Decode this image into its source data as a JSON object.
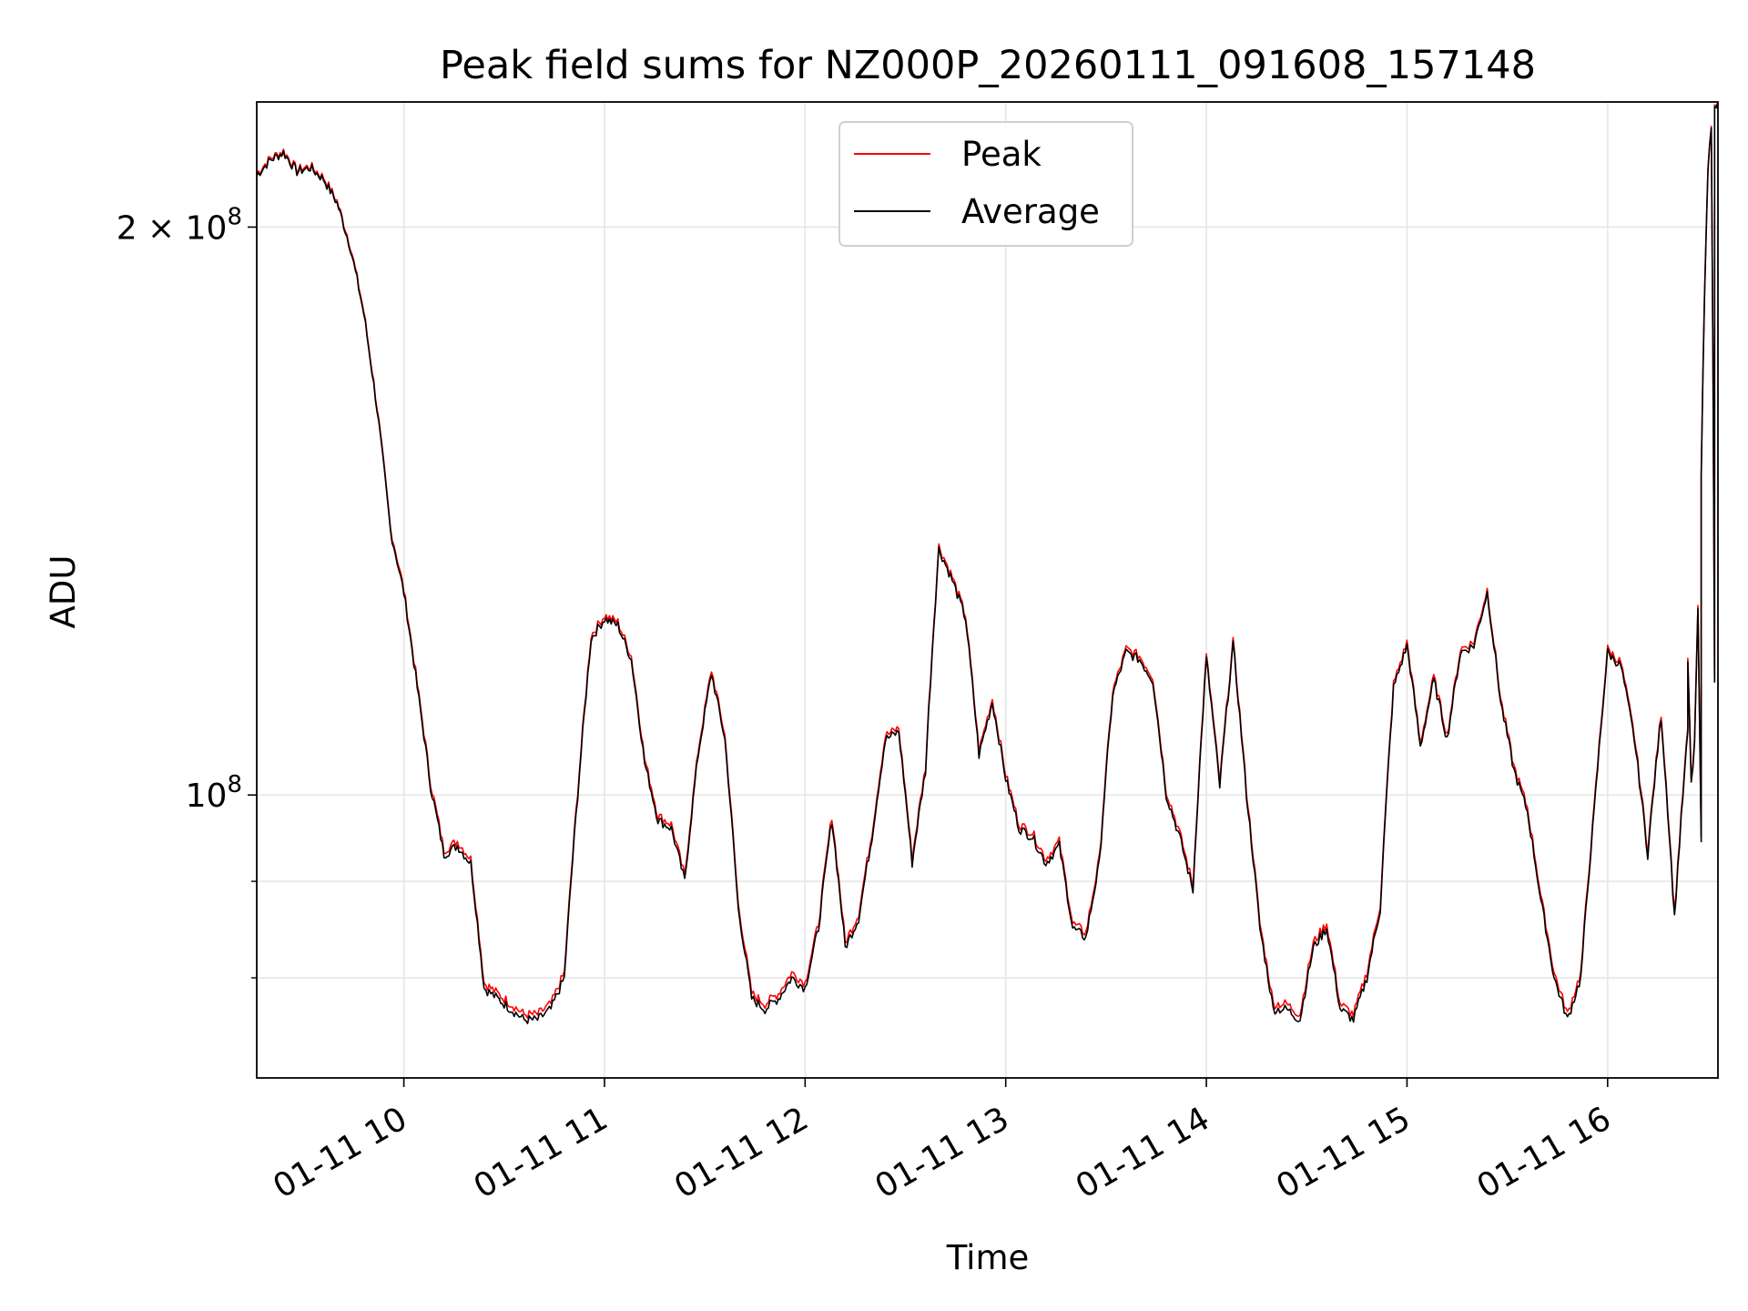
{
  "chart_data": {
    "type": "line",
    "title": "Peak field sums for NZ000P_20260111_091608_157148",
    "xlabel": "Time",
    "ylabel": "ADU",
    "x_axis": {
      "type": "time",
      "range": [
        "2026-01-11T09:16",
        "2026-01-11T16:33"
      ],
      "ticks": [
        {
          "value": "2026-01-11T10:00",
          "label": "01-11 10"
        },
        {
          "value": "2026-01-11T11:00",
          "label": "01-11 11"
        },
        {
          "value": "2026-01-11T12:00",
          "label": "01-11 12"
        },
        {
          "value": "2026-01-11T13:00",
          "label": "01-11 13"
        },
        {
          "value": "2026-01-11T14:00",
          "label": "01-11 14"
        },
        {
          "value": "2026-01-11T15:00",
          "label": "01-11 15"
        },
        {
          "value": "2026-01-11T16:00",
          "label": "01-11 16"
        }
      ]
    },
    "y_axis": {
      "scale": "log",
      "range": [
        70800000,
        233000000
      ],
      "major_ticks": [
        {
          "value": 100000000,
          "label_base": "10",
          "label_exp": "8",
          "label_coef": ""
        },
        {
          "value": 200000000,
          "label_base": "10",
          "label_exp": "8",
          "label_coef": "2 × "
        }
      ],
      "minor_ticks": [
        80000000,
        90000000
      ]
    },
    "grid": true,
    "legend_position": "top-center",
    "series": [
      {
        "name": "Peak",
        "color": "#ff0000",
        "offset": 500000
      },
      {
        "name": "Average",
        "color": "#000000",
        "offset": 0
      }
    ],
    "x": [
      "09:16",
      "09:20",
      "09:24",
      "09:28",
      "09:32",
      "09:36",
      "09:40",
      "09:44",
      "09:48",
      "09:52",
      "09:56",
      "10:00",
      "10:04",
      "10:08",
      "10:12",
      "10:16",
      "10:20",
      "10:24",
      "10:28",
      "10:32",
      "10:36",
      "10:40",
      "10:44",
      "10:48",
      "10:52",
      "10:56",
      "11:00",
      "11:04",
      "11:08",
      "11:12",
      "11:16",
      "11:20",
      "11:24",
      "11:28",
      "11:32",
      "11:36",
      "11:40",
      "11:44",
      "11:48",
      "11:52",
      "11:56",
      "12:00",
      "12:04",
      "12:08",
      "12:12",
      "12:16",
      "12:20",
      "12:24",
      "12:28",
      "12:32",
      "12:36",
      "12:40",
      "12:44",
      "12:48",
      "12:52",
      "12:56",
      "13:00",
      "13:04",
      "13:08",
      "13:12",
      "13:16",
      "13:20",
      "13:24",
      "13:28",
      "13:32",
      "13:36",
      "13:40",
      "13:44",
      "13:48",
      "13:52",
      "13:56",
      "14:00",
      "14:04",
      "14:08",
      "14:12",
      "14:16",
      "14:20",
      "14:24",
      "14:28",
      "14:32",
      "14:36",
      "14:40",
      "14:44",
      "14:48",
      "14:52",
      "14:56",
      "15:00",
      "15:04",
      "15:08",
      "15:12",
      "15:16",
      "15:20",
      "15:24",
      "15:28",
      "15:32",
      "15:36",
      "15:40",
      "15:44",
      "15:48",
      "15:52",
      "15:56",
      "16:00",
      "16:04",
      "16:08",
      "16:12",
      "16:16",
      "16:20",
      "16:24",
      "16:28",
      "16:32"
    ],
    "average": [
      213,
      217,
      219,
      214,
      215,
      212,
      206,
      195,
      180,
      160,
      138,
      128,
      114,
      101,
      93,
      94,
      92,
      79,
      78,
      77,
      76,
      76,
      77,
      80,
      100,
      121,
      124,
      123,
      118,
      104,
      97,
      96,
      90,
      105,
      116,
      107,
      87,
      78,
      77,
      78,
      80,
      79,
      85,
      97,
      83,
      86,
      95,
      107,
      108,
      92,
      103,
      135,
      130,
      124,
      105,
      112,
      102,
      96,
      95,
      92,
      94,
      85,
      84,
      92,
      113,
      119,
      118,
      115,
      100,
      95,
      89,
      118,
      101,
      120,
      100,
      85,
      77,
      77,
      76,
      83,
      85,
      77,
      76,
      80,
      87,
      114,
      120,
      106,
      115,
      107,
      119,
      120,
      128,
      112,
      103,
      98,
      88,
      80,
      76,
      80,
      98,
      119,
      117,
      107,
      93,
      110,
      86,
      108,
      95,
      115
    ],
    "average_tail": [
      118,
      101,
      106,
      125,
      148,
      185,
      215,
      225,
      231,
      233
    ]
  }
}
